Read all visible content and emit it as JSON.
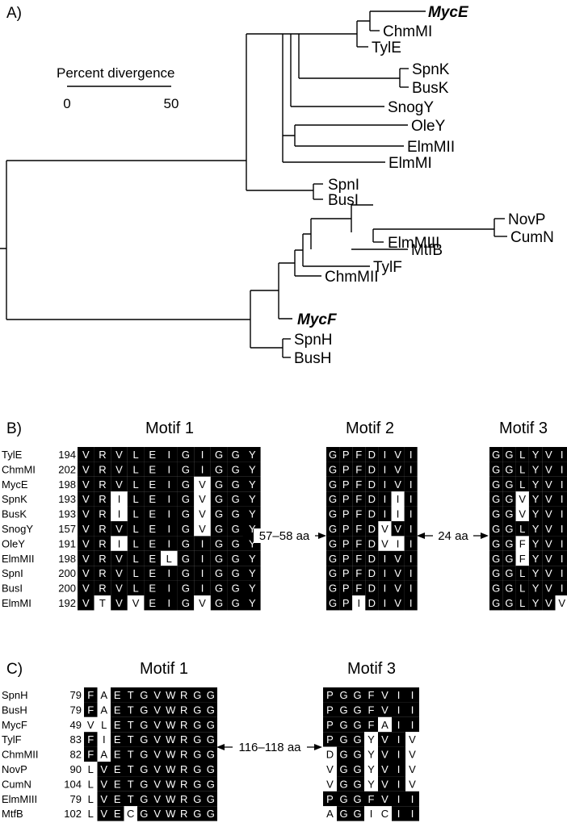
{
  "panel_a": {
    "label": "A)",
    "scale": {
      "title": "Percent divergence",
      "min_label": "0",
      "max_label": "50"
    },
    "leaves": [
      {
        "name": "MycE",
        "emphasis": true
      },
      {
        "name": "ChmMI",
        "emphasis": false
      },
      {
        "name": "TylE",
        "emphasis": false
      },
      {
        "name": "SpnK",
        "emphasis": false
      },
      {
        "name": "BusK",
        "emphasis": false
      },
      {
        "name": "SnogY",
        "emphasis": false
      },
      {
        "name": "OleY",
        "emphasis": false
      },
      {
        "name": "ElmMII",
        "emphasis": false
      },
      {
        "name": "ElmMI",
        "emphasis": false
      },
      {
        "name": "SpnI",
        "emphasis": false
      },
      {
        "name": "BusI",
        "emphasis": false
      },
      {
        "name": "NovP",
        "emphasis": false
      },
      {
        "name": "CumN",
        "emphasis": false
      },
      {
        "name": "ElmMIII",
        "emphasis": false
      },
      {
        "name": "MtfB",
        "emphasis": false
      },
      {
        "name": "TylF",
        "emphasis": false
      },
      {
        "name": "ChmMII",
        "emphasis": false
      },
      {
        "name": "MycF",
        "emphasis": true
      },
      {
        "name": "SpnH",
        "emphasis": false
      },
      {
        "name": "BusH",
        "emphasis": false
      }
    ]
  },
  "panel_b": {
    "label": "B)",
    "motif_titles": [
      "Motif 1",
      "Motif 2",
      "Motif 3"
    ],
    "gaps": [
      "57–58 aa",
      "24 aa"
    ],
    "rows": [
      {
        "name": "TylE",
        "start": "194",
        "m1": "VRVLEIGIGGY",
        "m2": "GPFDIVI",
        "m3": "GGLYVI"
      },
      {
        "name": "ChmMI",
        "start": "202",
        "m1": "VRVLEIGIGGY",
        "m2": "GPFDIVI",
        "m3": "GGLYVI"
      },
      {
        "name": "MycE",
        "start": "198",
        "m1": "VRVLEIGVGGY",
        "m2": "GPFDIVI",
        "m3": "GGLYVI"
      },
      {
        "name": "SpnK",
        "start": "193",
        "m1": "VRILEIGVGGY",
        "m2": "GPFDIII",
        "m3": "GGVYVI"
      },
      {
        "name": "BusK",
        "start": "193",
        "m1": "VRILEIGVGGY",
        "m2": "GPFDIII",
        "m3": "GGVYVI"
      },
      {
        "name": "SnogY",
        "start": "157",
        "m1": "VRVLEIGVGGY",
        "m2": "GPFDVVI",
        "m3": "GGLYVI"
      },
      {
        "name": "OleY",
        "start": "191",
        "m1": "VRILEIGIGGY",
        "m2": "GPFDVII",
        "m3": "GGFYVI"
      },
      {
        "name": "ElmMII",
        "start": "198",
        "m1": "VRVLELGIGGY",
        "m2": "GPFDIVI",
        "m3": "GGFYVI"
      },
      {
        "name": "SpnI",
        "start": "200",
        "m1": "VRVLEIGIGGY",
        "m2": "GPFDIVI",
        "m3": "GGLYVI"
      },
      {
        "name": "BusI",
        "start": "200",
        "m1": "VRVLEIGIGGY",
        "m2": "GPFDIVI",
        "m3": "GGLYVI"
      },
      {
        "name": "ElmMI",
        "start": "192",
        "m1": "VTVVEIGVGGY",
        "m2": "GPIDIVI",
        "m3": "GGLYVV"
      }
    ]
  },
  "panel_c": {
    "label": "C)",
    "motif_titles": [
      "Motif 1",
      "Motif 3"
    ],
    "gaps": [
      "116–118 aa"
    ],
    "rows": [
      {
        "name": "SpnH",
        "start": "79",
        "m1": "FAETGVWRGG",
        "m3": "PGGFVII"
      },
      {
        "name": "BusH",
        "start": "79",
        "m1": "FAETGVWRGG",
        "m3": "PGGFVII"
      },
      {
        "name": "MycF",
        "start": "49",
        "m1": "VLETGVWRGG",
        "m3": "PGGFAII"
      },
      {
        "name": "TylF",
        "start": "83",
        "m1": "FIETGVWRGG",
        "m3": "PGGYVIV"
      },
      {
        "name": "ChmMII",
        "start": "82",
        "m1": "FAETGVWRGG",
        "m3": "DGGYVIV"
      },
      {
        "name": "NovP",
        "start": "90",
        "m1": "LVETGVWRGG",
        "m3": "VGGYVIV"
      },
      {
        "name": "CumN",
        "start": "104",
        "m1": "LVETGVWRGG",
        "m3": "VGGYVIV"
      },
      {
        "name": "ElmMIII",
        "start": "79",
        "m1": "LVETGVWRGG",
        "m3": "PGGFVII"
      },
      {
        "name": "MtfB",
        "start": "102",
        "m1": "LVECGVWRGG",
        "m3": "AGGICII"
      }
    ]
  }
}
